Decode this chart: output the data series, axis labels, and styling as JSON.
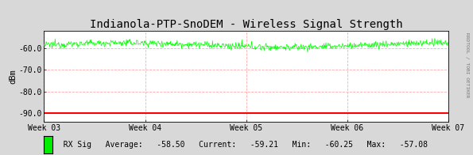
{
  "title": "Indianola-PTP-SnoDEM - Wireless Signal Strength",
  "ylabel": "dBm",
  "right_label": "RRDTOOL / TOBI OETIKER",
  "background_color": "#d8d8d8",
  "plot_bg_color": "#ffffff",
  "grid_color": "#ffaaaa",
  "threshold_color": "#ff0000",
  "threshold_value": -90.0,
  "ylim": [
    -94.0,
    -52.0
  ],
  "yticks": [
    -90.0,
    -80.0,
    -70.0,
    -60.0
  ],
  "ytick_labels": [
    "-90.0",
    "-80.0",
    "-70.0",
    "-60.0"
  ],
  "xtick_labels": [
    "Week 03",
    "Week 04",
    "Week 05",
    "Week 06",
    "Week 07"
  ],
  "legend_label": "RX Sig",
  "legend_color": "#00ee00",
  "stats": {
    "Average": "-58.50",
    "Current": "-59.21",
    "Min": "-60.25",
    "Max": "-57.08"
  },
  "signal_mean": -58.5,
  "n_points": 800,
  "title_fontsize": 10,
  "axis_fontsize": 7,
  "legend_fontsize": 7
}
